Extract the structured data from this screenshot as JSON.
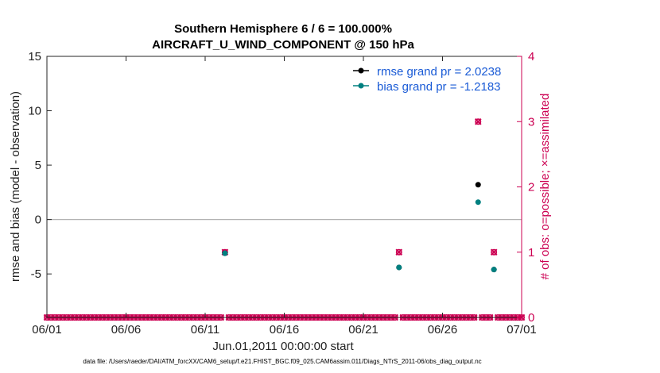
{
  "chart_data": {
    "type": "scatter",
    "title": "Southern Hemisphere 6 / 6 = 100.000%",
    "subtitle": "AIRCRAFT_U_WIND_COMPONENT @ 150 hPa",
    "xlabel": "Jun.01,2011 00:00:00 start",
    "ylabel": "rmse and bias (model - observation)",
    "y2label": "# of obs: o=possible; ×=assimilated",
    "xlim": [
      0,
      30
    ],
    "ylim": [
      -9,
      15
    ],
    "y2lim": [
      0,
      4
    ],
    "x_ticks": [
      0,
      5,
      10,
      15,
      20,
      25,
      30
    ],
    "x_tick_labels": [
      "06/01",
      "06/06",
      "06/11",
      "06/16",
      "06/21",
      "06/26",
      "07/01"
    ],
    "y_ticks": [
      -5,
      0,
      5,
      10,
      15
    ],
    "y_tick_labels": [
      "-5",
      "0",
      "5",
      "10",
      "15"
    ],
    "y2_ticks": [
      0,
      1,
      2,
      3,
      4
    ],
    "y2_tick_labels": [
      "0",
      "1",
      "2",
      "3",
      "4"
    ],
    "reference_line_y": 0,
    "grid": false,
    "legend_position": "top-right",
    "legend": [
      {
        "label": "rmse grand pr = 2.0238",
        "color": "#000000"
      },
      {
        "label": "bias grand pr = -1.2183",
        "color": "#008080"
      }
    ],
    "series": [
      {
        "name": "rmse grand pr = 2.0238",
        "color": "#000000",
        "axis": "left",
        "points": [
          [
            11.25,
            -3.1
          ],
          [
            22.25,
            -4.4
          ],
          [
            27.25,
            3.2
          ],
          [
            28.25,
            -4.6
          ]
        ]
      },
      {
        "name": "bias grand pr = -1.2183",
        "color": "#008080",
        "axis": "left",
        "points": [
          [
            11.25,
            -3.1
          ],
          [
            22.25,
            -4.4
          ],
          [
            27.25,
            1.6
          ],
          [
            28.25,
            -4.6
          ]
        ]
      },
      {
        "axis": "right",
        "marker": "o",
        "color": "#cc0052",
        "x_start": 0,
        "x_end": 30,
        "x_step": 0.25,
        "default_value": 0,
        "overrides": [
          [
            11.25,
            1
          ],
          [
            22.25,
            1
          ],
          [
            27.25,
            3
          ],
          [
            28.25,
            1
          ]
        ]
      },
      {
        "axis": "right",
        "marker": "x",
        "color": "#cc0052",
        "x_start": 0,
        "x_end": 30,
        "x_step": 0.25,
        "default_value": 0,
        "overrides": [
          [
            11.25,
            1
          ],
          [
            22.25,
            1
          ],
          [
            27.25,
            3
          ],
          [
            28.25,
            1
          ]
        ]
      }
    ],
    "colors": {
      "right_axis": "#cc0052",
      "reference_line": "#b3b3b3"
    },
    "footnote": "data file: /Users/raeder/DAI/ATM_forcXX/CAM6_setup/f.e21.FHIST_BGC.f09_025.CAM6assim.011/Diags_NTrS_2011-06/obs_diag_output.nc"
  }
}
